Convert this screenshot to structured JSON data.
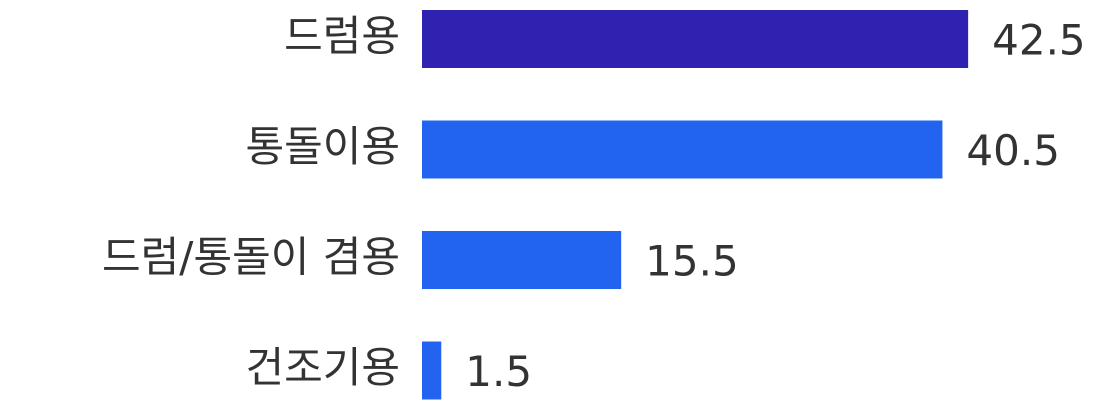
{
  "chart_data": {
    "type": "bar",
    "orientation": "horizontal",
    "categories": [
      "드럼용",
      "통돌이용",
      "드럼/통돌이 겸용",
      "건조기용"
    ],
    "values": [
      42.5,
      40.5,
      15.5,
      1.5
    ],
    "colors": [
      "#2f22b0",
      "#2264ef",
      "#2264ef",
      "#2264ef"
    ]
  }
}
